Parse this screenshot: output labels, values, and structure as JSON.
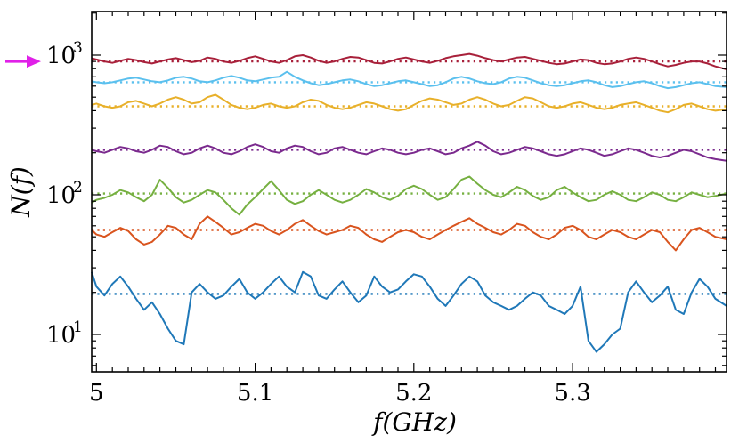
{
  "chart_data": {
    "type": "line",
    "title": "",
    "xlabel": "f(GHz)",
    "ylabel": "N(f)",
    "yscale": "log",
    "xlim": [
      4.997,
      5.397
    ],
    "ylim": [
      5.4,
      2050
    ],
    "grid": false,
    "x_ticks": [
      {
        "value": 5.0,
        "label": "5"
      },
      {
        "value": 5.1,
        "label": "5.1"
      },
      {
        "value": 5.2,
        "label": "5.2"
      },
      {
        "value": 5.3,
        "label": "5.3"
      }
    ],
    "y_ticks": [
      {
        "value": 10,
        "base": "10",
        "exp": "1"
      },
      {
        "value": 100,
        "base": "10",
        "exp": "2"
      },
      {
        "value": 1000,
        "base": "10",
        "exp": "3"
      }
    ],
    "marker_color": "#e020e8",
    "x": [
      4.997,
      5.0,
      5.005,
      5.01,
      5.015,
      5.02,
      5.025,
      5.03,
      5.035,
      5.04,
      5.045,
      5.05,
      5.055,
      5.06,
      5.065,
      5.07,
      5.075,
      5.08,
      5.085,
      5.09,
      5.095,
      5.1,
      5.105,
      5.11,
      5.115,
      5.12,
      5.125,
      5.13,
      5.135,
      5.14,
      5.145,
      5.15,
      5.155,
      5.16,
      5.165,
      5.17,
      5.175,
      5.18,
      5.185,
      5.19,
      5.195,
      5.2,
      5.205,
      5.21,
      5.215,
      5.22,
      5.225,
      5.23,
      5.235,
      5.24,
      5.245,
      5.25,
      5.255,
      5.26,
      5.265,
      5.27,
      5.275,
      5.28,
      5.285,
      5.29,
      5.295,
      5.3,
      5.305,
      5.31,
      5.315,
      5.32,
      5.325,
      5.33,
      5.335,
      5.34,
      5.345,
      5.35,
      5.355,
      5.36,
      5.365,
      5.37,
      5.375,
      5.38,
      5.385,
      5.39,
      5.397
    ],
    "series": [
      {
        "color": "#a8203a",
        "mean": 900,
        "values": [
          950,
          930,
          900,
          880,
          910,
          940,
          920,
          890,
          870,
          900,
          930,
          950,
          920,
          890,
          910,
          960,
          940,
          900,
          880,
          910,
          950,
          980,
          940,
          900,
          880,
          920,
          980,
          1000,
          960,
          910,
          880,
          900,
          940,
          970,
          960,
          920,
          880,
          870,
          900,
          940,
          960,
          930,
          900,
          880,
          910,
          950,
          980,
          1000,
          1020,
          990,
          950,
          920,
          900,
          930,
          960,
          970,
          940,
          910,
          880,
          860,
          870,
          900,
          930,
          920,
          880,
          860,
          870,
          900,
          940,
          960,
          940,
          900,
          860,
          830,
          850,
          880,
          900,
          900,
          870,
          830,
          790
        ]
      },
      {
        "color": "#5bc0ee",
        "mean": 640,
        "values": [
          650,
          640,
          630,
          640,
          660,
          680,
          690,
          670,
          650,
          640,
          660,
          690,
          700,
          680,
          650,
          640,
          660,
          690,
          710,
          690,
          660,
          650,
          670,
          690,
          700,
          760,
          700,
          660,
          630,
          610,
          620,
          640,
          660,
          670,
          650,
          620,
          600,
          610,
          630,
          650,
          660,
          640,
          620,
          600,
          610,
          640,
          680,
          700,
          680,
          650,
          630,
          620,
          640,
          680,
          700,
          690,
          660,
          630,
          610,
          600,
          610,
          630,
          650,
          660,
          640,
          610,
          590,
          600,
          620,
          640,
          650,
          630,
          600,
          580,
          590,
          610,
          630,
          640,
          620,
          600,
          590
        ]
      },
      {
        "color": "#e8b02a",
        "mean": 430,
        "values": [
          440,
          450,
          430,
          420,
          430,
          460,
          470,
          450,
          430,
          450,
          480,
          500,
          480,
          450,
          460,
          500,
          520,
          480,
          440,
          420,
          410,
          420,
          440,
          450,
          430,
          420,
          430,
          460,
          480,
          470,
          440,
          420,
          410,
          420,
          440,
          460,
          450,
          430,
          410,
          400,
          410,
          440,
          470,
          490,
          480,
          460,
          440,
          450,
          480,
          500,
          480,
          450,
          430,
          440,
          470,
          500,
          490,
          460,
          430,
          420,
          430,
          450,
          460,
          440,
          420,
          410,
          420,
          440,
          450,
          460,
          440,
          420,
          400,
          390,
          410,
          440,
          450,
          430,
          410,
          400,
          410
        ]
      },
      {
        "color": "#7b2a8e",
        "mean": 210,
        "values": [
          210,
          205,
          200,
          210,
          220,
          215,
          205,
          200,
          210,
          225,
          220,
          205,
          195,
          200,
          215,
          225,
          215,
          200,
          195,
          205,
          220,
          230,
          220,
          205,
          200,
          215,
          225,
          220,
          205,
          195,
          200,
          215,
          220,
          210,
          200,
          195,
          205,
          215,
          210,
          200,
          195,
          200,
          210,
          215,
          205,
          195,
          200,
          215,
          225,
          240,
          225,
          205,
          195,
          200,
          210,
          220,
          215,
          205,
          195,
          190,
          195,
          205,
          215,
          210,
          200,
          190,
          195,
          205,
          215,
          210,
          200,
          190,
          185,
          190,
          200,
          210,
          205,
          195,
          185,
          180,
          175
        ]
      },
      {
        "color": "#76b041",
        "mean": 102,
        "values": [
          88,
          92,
          95,
          100,
          108,
          104,
          96,
          90,
          100,
          128,
          112,
          96,
          88,
          92,
          100,
          108,
          104,
          92,
          80,
          72,
          85,
          96,
          110,
          125,
          108,
          92,
          86,
          90,
          100,
          108,
          100,
          92,
          88,
          92,
          100,
          110,
          104,
          96,
          92,
          98,
          110,
          116,
          110,
          100,
          92,
          96,
          110,
          128,
          135,
          120,
          108,
          100,
          96,
          104,
          114,
          108,
          98,
          92,
          96,
          108,
          114,
          104,
          96,
          90,
          92,
          100,
          106,
          100,
          92,
          90,
          96,
          104,
          100,
          92,
          90,
          96,
          104,
          100,
          96,
          98,
          102
        ]
      },
      {
        "color": "#d9541e",
        "mean": 56,
        "values": [
          56,
          52,
          50,
          54,
          58,
          55,
          48,
          44,
          46,
          52,
          60,
          58,
          52,
          48,
          62,
          70,
          64,
          58,
          52,
          54,
          58,
          62,
          60,
          55,
          52,
          56,
          62,
          66,
          60,
          55,
          52,
          54,
          56,
          60,
          58,
          52,
          48,
          46,
          50,
          54,
          56,
          54,
          50,
          48,
          52,
          56,
          60,
          64,
          68,
          62,
          58,
          54,
          52,
          56,
          62,
          60,
          54,
          50,
          48,
          52,
          58,
          60,
          56,
          50,
          48,
          52,
          56,
          54,
          50,
          48,
          52,
          56,
          54,
          46,
          40,
          48,
          56,
          58,
          54,
          50,
          48
        ]
      },
      {
        "color": "#1f78b8",
        "mean": 19.5,
        "values": [
          28,
          22,
          19,
          23,
          26,
          22,
          18,
          15,
          17,
          14,
          11,
          9,
          8.5,
          20,
          23,
          20,
          18,
          19,
          22,
          25,
          20,
          18,
          20,
          23,
          26,
          22,
          20,
          28,
          26,
          19,
          18,
          21,
          24,
          20,
          17,
          19,
          26,
          22,
          20,
          21,
          24,
          27,
          26,
          22,
          18,
          16,
          19,
          23,
          26,
          24,
          19,
          17,
          16,
          15,
          16,
          18,
          20,
          19,
          16,
          15,
          14,
          16,
          22,
          9,
          7.5,
          8.5,
          10,
          11,
          20,
          24,
          20,
          17,
          19,
          22,
          15,
          14,
          20,
          25,
          22,
          18,
          16
        ]
      }
    ]
  }
}
